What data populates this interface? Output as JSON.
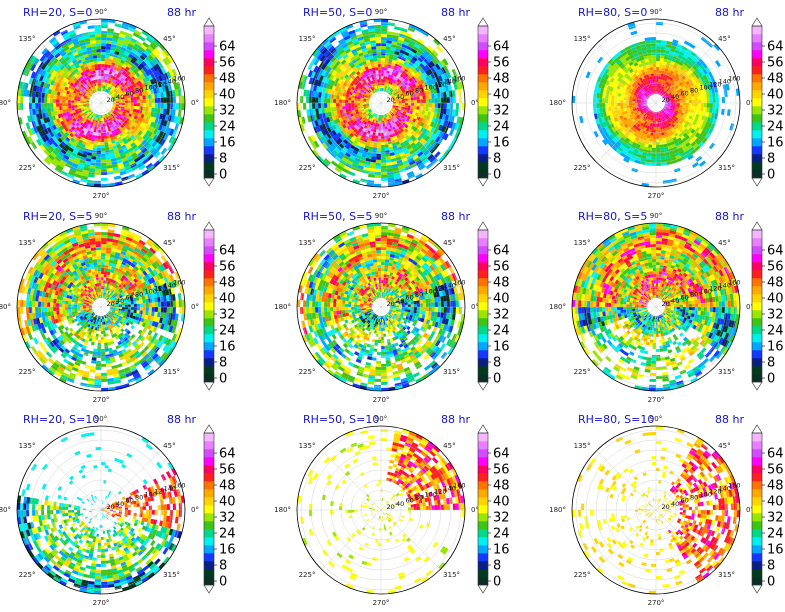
{
  "figure": {
    "colorbar": {
      "ticks": [
        "0",
        "8",
        "16",
        "24",
        "32",
        "40",
        "48",
        "56",
        "64"
      ],
      "colors": [
        "#0a2f27",
        "#013b1e",
        "#0b1e88",
        "#1338ff",
        "#00a6ff",
        "#00f0f0",
        "#00d98a",
        "#3ec416",
        "#99e600",
        "#ffff00",
        "#ffd400",
        "#ffa800",
        "#ff7400",
        "#ff1f1f",
        "#ff0060",
        "#ff00ff",
        "#d34bff",
        "#e77fff",
        "#f4b6ff"
      ]
    },
    "angle_labels": [
      "90°",
      "45°",
      "0°",
      "315°",
      "270°",
      "225°",
      "180°",
      "135°"
    ],
    "radial_labels": [
      "20",
      "40",
      "60",
      "80",
      "100",
      "120",
      "140",
      "160"
    ]
  },
  "chart_data": [
    {
      "type": "heatmap",
      "title": "RH=20, S=0",
      "time_label": "88 hr",
      "pattern": "ring"
    },
    {
      "type": "heatmap",
      "title": "RH=50, S=0",
      "time_label": "88 hr",
      "pattern": "ring"
    },
    {
      "type": "heatmap",
      "title": "RH=80, S=0",
      "time_label": "88 hr",
      "pattern": "ring_strong"
    },
    {
      "type": "heatmap",
      "title": "RH=20, S=5",
      "time_label": "88 hr",
      "pattern": "shear"
    },
    {
      "type": "heatmap",
      "title": "RH=50, S=5",
      "time_label": "88 hr",
      "pattern": "shear"
    },
    {
      "type": "heatmap",
      "title": "RH=80, S=5",
      "time_label": "88 hr",
      "pattern": "shear_strong"
    },
    {
      "type": "heatmap",
      "title": "RH=20, S=10",
      "time_label": "88 hr",
      "pattern": "sparse_sw"
    },
    {
      "type": "heatmap",
      "title": "RH=50, S=10",
      "time_label": "88 hr",
      "pattern": "sparse_ne"
    },
    {
      "type": "heatmap",
      "title": "RH=80, S=10",
      "time_label": "88 hr",
      "pattern": "sparse_e"
    }
  ]
}
